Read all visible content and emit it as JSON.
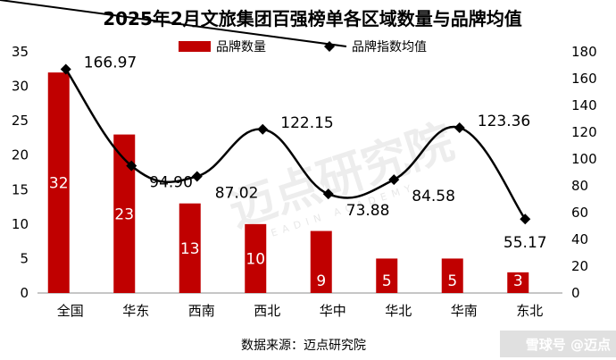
{
  "chart_data": {
    "type": "bar+line",
    "title": "2025年2月文旅集团百强榜单各区域数量与品牌均值",
    "categories": [
      "全国",
      "华东",
      "西南",
      "西北",
      "华中",
      "华北",
      "华南",
      "东北"
    ],
    "series": [
      {
        "name": "品牌数量",
        "type": "bar",
        "axis": "left",
        "color": "#c00000",
        "values": [
          32,
          23,
          13,
          10,
          9,
          5,
          5,
          3
        ],
        "labels": [
          "32",
          "23",
          "13",
          "10",
          "9",
          "5",
          "5",
          "3"
        ]
      },
      {
        "name": "品牌指数均值",
        "type": "line",
        "axis": "right",
        "color": "#000000",
        "values": [
          166.97,
          94.9,
          87.02,
          122.15,
          73.88,
          84.58,
          123.36,
          55.17
        ],
        "labels": [
          "166.97",
          "94.90",
          "87.02",
          "122.15",
          "73.88",
          "84.58",
          "123.36",
          "55.17"
        ]
      }
    ],
    "y_left": {
      "min": 0,
      "max": 35,
      "ticks": [
        "0",
        "5",
        "10",
        "15",
        "20",
        "25",
        "30",
        "35"
      ]
    },
    "y_right": {
      "min": 0,
      "max": 180,
      "ticks": [
        "0",
        "20",
        "40",
        "60",
        "80",
        "100",
        "120",
        "140",
        "160",
        "180"
      ]
    },
    "grid": false,
    "legend": "top"
  },
  "source": "数据来源：迈点研究院",
  "watermark": {
    "text": "迈点研究院",
    "subtext": "MEADIN ACADEMY",
    "corner": "雪球号 @迈点"
  }
}
